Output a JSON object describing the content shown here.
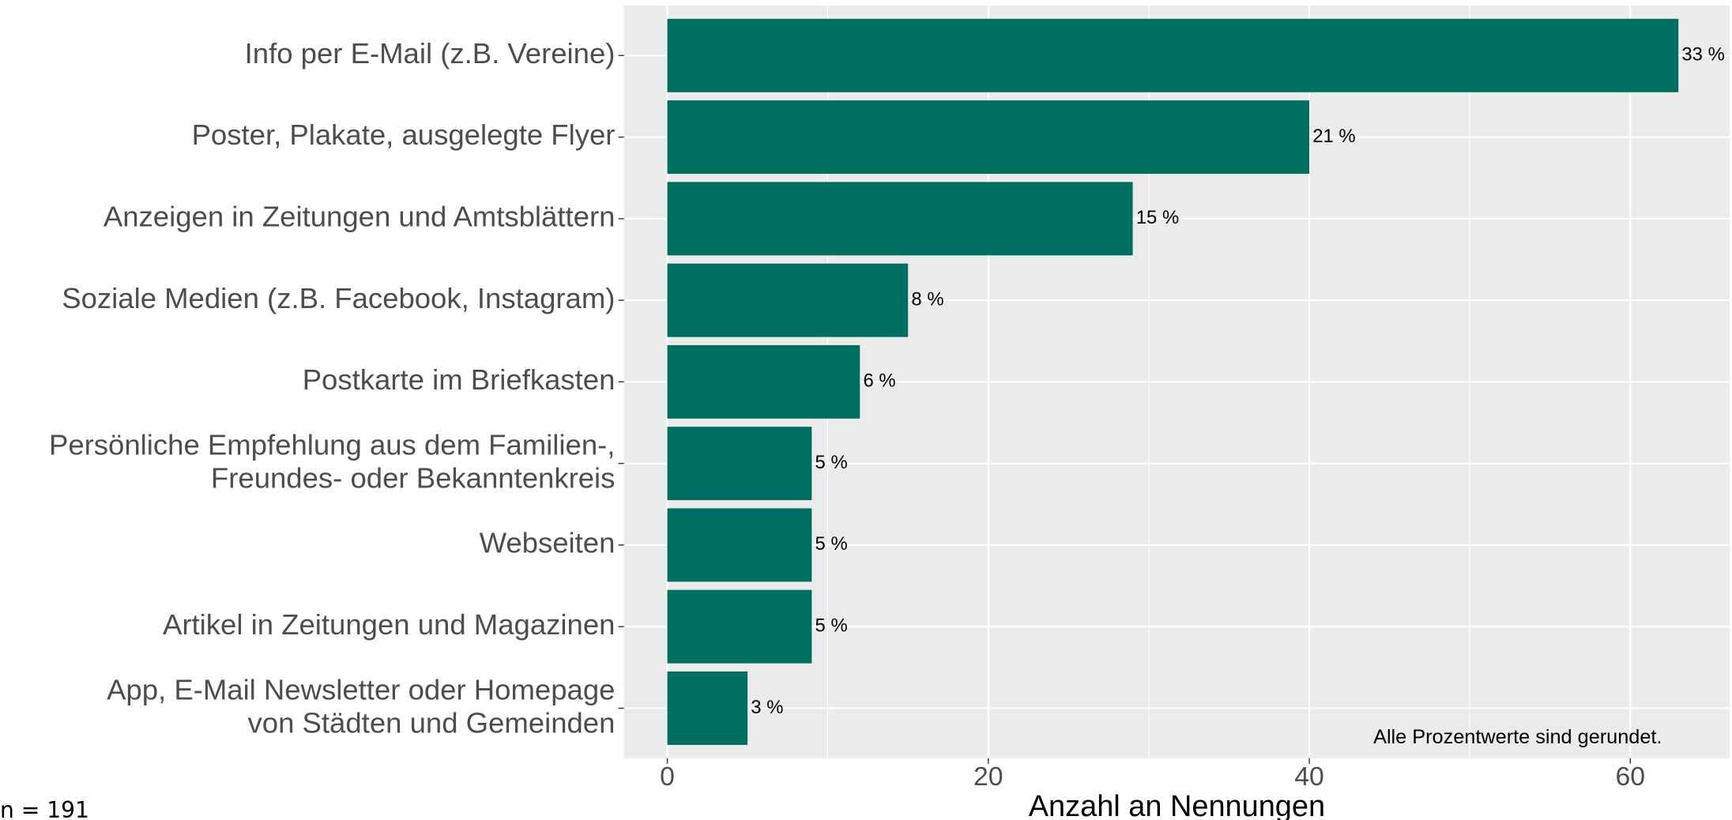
{
  "chart_data": {
    "type": "bar",
    "orientation": "horizontal",
    "categories": [
      "Info per E-Mail (z.B. Vereine)",
      "Poster, Plakate, ausgelegte Flyer",
      "Anzeigen in Zeitungen und Amtsblättern",
      "Soziale Medien (z.B. Facebook, Instagram)",
      "Postkarte im Briefkasten",
      "Persönliche Empfehlung aus dem Familien-,\nFreundes- oder Bekanntenkreis",
      "Webseiten",
      "Artikel in Zeitungen und Magazinen",
      "App, E-Mail Newsletter oder Homepage\nvon Städten und Gemeinden"
    ],
    "values": [
      63,
      40,
      29,
      15,
      12,
      9,
      9,
      9,
      5
    ],
    "value_labels": [
      "33 %",
      "21 %",
      "15 %",
      "8 %",
      "6 %",
      "5 %",
      "5 %",
      "5 %",
      "3 %"
    ],
    "color": "#006f60",
    "xlabel": "Anzahl an Nennungen",
    "xlim": [
      -2.7,
      66.2
    ],
    "xticks": [
      0,
      20,
      40,
      60
    ],
    "grid": true,
    "annotation": "Alle Prozentwerte sind gerundet.",
    "note": "n = 191"
  }
}
